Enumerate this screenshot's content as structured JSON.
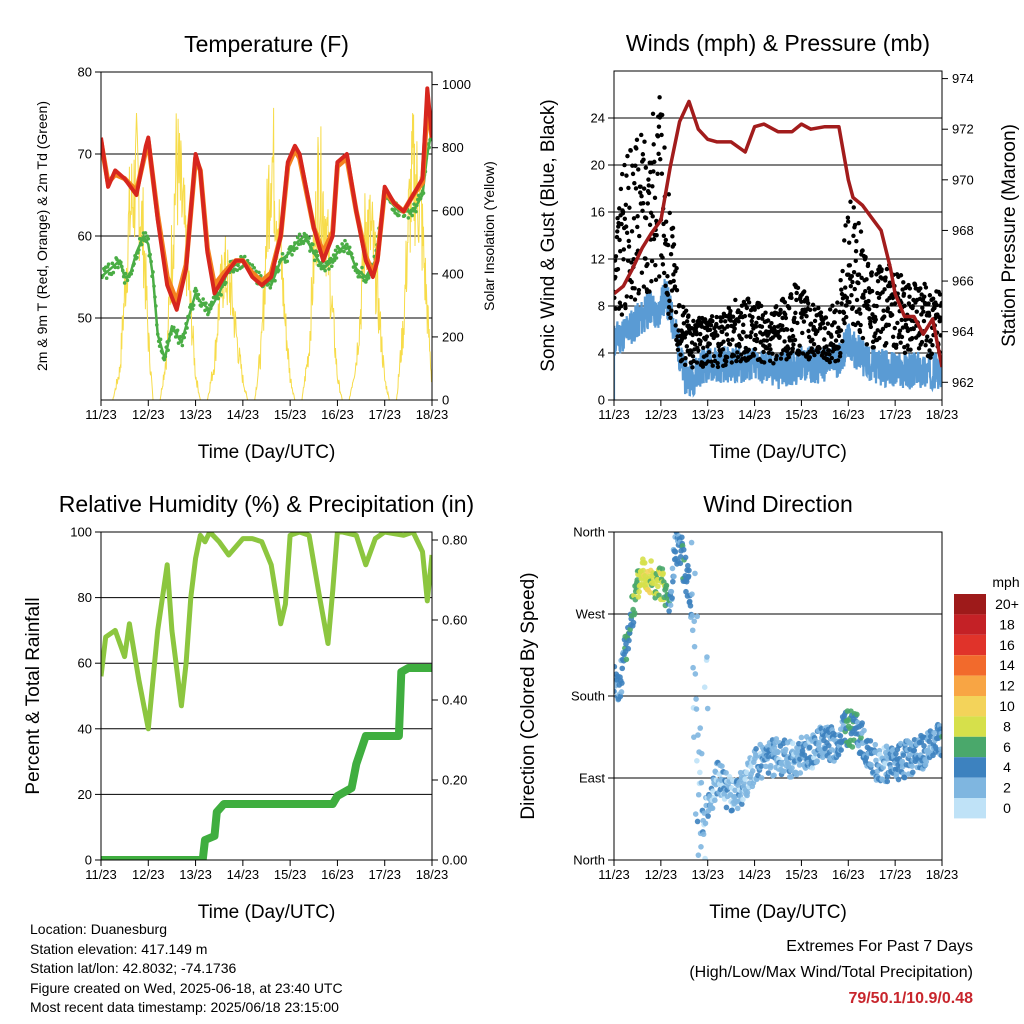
{
  "colors": {
    "temp2m": "#d7261e",
    "temp9m": "#f4821f",
    "dewpoint": "#4aad45",
    "solar": "#f7dc4a",
    "wind": "#5a9bd4",
    "gust": "#000000",
    "pressure": "#a21c1c",
    "rh": "#8cc63f",
    "precip": "#3fae3f"
  },
  "panels": {
    "temperature": {
      "title": "Temperature (F)",
      "ylabel_left": "2m & 9m T (Red, Orange) & 2m Td (Green)",
      "ylabel_right": "Solar Insolation (Yellow)",
      "xlabel": "Time (Day/UTC)"
    },
    "winds": {
      "title": "Winds (mph) & Pressure (mb)",
      "ylabel_left": "Sonic Wind & Gust (Blue, Black)",
      "ylabel_right": "Station Pressure (Maroon)",
      "xlabel": "Time (Day/UTC)"
    },
    "humidity": {
      "title": "Relative Humidity (%) & Precipitation (in)",
      "ylabel_left": "Percent & Total Rainfall",
      "xlabel": "Time (Day/UTC)"
    },
    "direction": {
      "title": "Wind Direction",
      "ylabel_left": "Direction (Colored By Speed)",
      "xlabel": "Time (Day/UTC)",
      "legend_title": "mph"
    }
  },
  "info": {
    "location": "Location: Duanesburg",
    "elevation": "Station elevation: 417.149 m",
    "latlon": "Station lat/lon: 42.8032; -74.1736",
    "created": "Figure created on Wed, 2025-06-18, at 23:40 UTC",
    "recent": "Most recent data timestamp: 2025/06/18 23:15:00"
  },
  "extremes": {
    "title": "Extremes For Past 7 Days",
    "subtitle": "(High/Low/Max Wind/Total Precipitation)",
    "values": "79/50.1/10.9/0.48"
  },
  "chart_data": [
    {
      "type": "line",
      "title": "Temperature (F)",
      "xlabel": "Time (Day/UTC)",
      "ylabel": "2m & 9m T (Red, Orange) & 2m Td (Green)",
      "ylabel_right": "Solar Insolation (Yellow)",
      "xlim": [
        11,
        18
      ],
      "ylim": [
        40,
        80
      ],
      "ylim_right": [
        0,
        1040
      ],
      "xticks": [
        "11/23",
        "12/23",
        "13/23",
        "14/23",
        "15/23",
        "16/23",
        "17/23",
        "18/23"
      ],
      "yticks": [
        "50",
        "60",
        "70",
        "80"
      ],
      "yticks_right": [
        "0",
        "200",
        "400",
        "600",
        "800",
        "1000"
      ],
      "series": [
        {
          "name": "2m T",
          "color": "#d7261e",
          "x": [
            11.0,
            11.15,
            11.3,
            11.5,
            11.75,
            11.95,
            12.0,
            12.2,
            12.4,
            12.6,
            12.8,
            13.0,
            13.1,
            13.25,
            13.4,
            13.6,
            13.85,
            14.0,
            14.2,
            14.4,
            14.6,
            14.8,
            14.95,
            15.1,
            15.2,
            15.5,
            15.7,
            15.9,
            16.0,
            16.2,
            16.4,
            16.6,
            16.75,
            16.85,
            17.0,
            17.2,
            17.4,
            17.6,
            17.8,
            17.9,
            18.0
          ],
          "y": [
            72,
            66,
            68,
            67,
            65,
            71,
            72,
            62,
            54,
            51,
            56,
            70,
            68,
            58,
            53,
            55,
            57,
            57,
            55,
            54,
            55,
            60,
            69,
            71,
            70,
            61,
            57,
            60,
            69,
            70,
            63,
            57,
            55,
            57,
            66,
            64,
            63,
            65,
            67,
            78,
            72
          ]
        },
        {
          "name": "9m T",
          "color": "#f4821f",
          "x": [
            11.0,
            11.15,
            11.3,
            11.5,
            11.75,
            11.95,
            12.0,
            12.2,
            12.4,
            12.6,
            12.8,
            13.0,
            13.1,
            13.25,
            13.4,
            13.6,
            13.85,
            14.0,
            14.2,
            14.4,
            14.6,
            14.8,
            14.95,
            15.1,
            15.2,
            15.5,
            15.7,
            15.9,
            16.0,
            16.2,
            16.4,
            16.6,
            16.75,
            16.85,
            17.0,
            17.2,
            17.4,
            17.6,
            17.8,
            17.9,
            18.0
          ],
          "y": [
            71.5,
            66.5,
            67.5,
            67,
            65.5,
            70.5,
            71.5,
            62.5,
            55,
            52,
            56.5,
            69.5,
            68,
            58.5,
            54,
            55.5,
            57,
            57,
            55.5,
            54.5,
            55.5,
            60,
            68.5,
            70.5,
            69.5,
            61,
            58,
            60.5,
            68.5,
            69.5,
            63,
            57.5,
            55.5,
            57.5,
            65.5,
            64,
            63,
            65,
            66.5,
            76,
            72
          ]
        },
        {
          "name": "2m Td",
          "color": "#4aad45",
          "x": [
            11.0,
            11.2,
            11.4,
            11.5,
            11.6,
            11.75,
            11.9,
            12.0,
            12.1,
            12.2,
            12.35,
            12.5,
            12.7,
            12.9,
            13.0,
            13.1,
            13.3,
            13.5,
            13.7,
            14.0,
            14.3,
            14.6,
            14.8,
            15.0,
            15.1,
            15.3,
            15.5,
            15.7,
            15.9,
            16.0,
            16.2,
            16.4,
            16.6,
            16.8,
            17.0,
            17.3,
            17.6,
            17.8,
            17.9,
            18.0
          ],
          "y": [
            55,
            56,
            57,
            55,
            55,
            58,
            60,
            59,
            55,
            48,
            45,
            49,
            47,
            51,
            53,
            52,
            51,
            53,
            56,
            57,
            55,
            54,
            57,
            58,
            59,
            60,
            58,
            56,
            57,
            58,
            59,
            56,
            55,
            57,
            65,
            63,
            63,
            65,
            70,
            73
          ]
        },
        {
          "name": "Solar Insolation",
          "color": "#f7dc4a",
          "axis": "right",
          "x": [
            11.0,
            11.1,
            11.25,
            11.4,
            11.5,
            11.6,
            11.75,
            11.9,
            12.0,
            12.1,
            12.25,
            12.4,
            12.5,
            12.6,
            12.75,
            12.9,
            13.0,
            13.1,
            13.25,
            13.4,
            13.5,
            13.6,
            13.75,
            13.9,
            14.0,
            14.1,
            14.25,
            14.4,
            14.5,
            14.6,
            14.75,
            14.9,
            15.0,
            15.1,
            15.25,
            15.4,
            15.5,
            15.6,
            15.75,
            15.9,
            16.0,
            16.1,
            16.25,
            16.4,
            16.5,
            16.6,
            16.75,
            16.9,
            17.0,
            17.1,
            17.25,
            17.4,
            17.5,
            17.6,
            17.75,
            17.9,
            18.0
          ],
          "y": [
            0,
            0,
            0,
            120,
            420,
            720,
            880,
            640,
            250,
            0,
            0,
            200,
            600,
            940,
            700,
            350,
            100,
            0,
            0,
            150,
            380,
            520,
            430,
            200,
            80,
            0,
            0,
            220,
            650,
            1000,
            720,
            300,
            90,
            0,
            0,
            200,
            550,
            880,
            720,
            330,
            90,
            0,
            0,
            160,
            380,
            720,
            620,
            300,
            80,
            0,
            0,
            300,
            700,
            900,
            780,
            350,
            60
          ]
        }
      ]
    },
    {
      "type": "line",
      "title": "Winds (mph) & Pressure (mb)",
      "xlabel": "Time (Day/UTC)",
      "ylabel": "Sonic Wind & Gust (Blue, Black)",
      "ylabel_right": "Station Pressure (Maroon)",
      "xlim": [
        11,
        18
      ],
      "ylim": [
        0,
        28
      ],
      "ylim_right": [
        961.3,
        974.3
      ],
      "xticks": [
        "11/23",
        "12/23",
        "13/23",
        "14/23",
        "15/23",
        "16/23",
        "17/23",
        "18/23"
      ],
      "yticks": [
        "0",
        "4",
        "8",
        "12",
        "16",
        "20",
        "24"
      ],
      "yticks_right": [
        "962",
        "964",
        "966",
        "968",
        "970",
        "972",
        "974"
      ],
      "series": [
        {
          "name": "Sonic Wind",
          "color": "#5a9bd4",
          "x": [
            11.0,
            11.3,
            11.6,
            11.8,
            11.9,
            12.1,
            12.3,
            12.5,
            12.7,
            12.9,
            13.1,
            13.5,
            14.0,
            14.5,
            15.0,
            15.5,
            15.8,
            16.0,
            16.2,
            16.5,
            17.0,
            17.5,
            18.0
          ],
          "y": [
            5,
            6,
            7,
            8,
            7,
            9,
            6,
            2,
            2,
            3,
            3,
            3,
            3,
            2.5,
            3,
            3,
            3.5,
            5,
            4,
            3,
            2.5,
            2.5,
            2.5
          ]
        },
        {
          "name": "Gust",
          "color": "#000000",
          "mode": "markers",
          "x": [
            11.0,
            11.2,
            11.4,
            11.6,
            11.8,
            12.0,
            12.2,
            12.4,
            12.6,
            12.8,
            13.0,
            13.3,
            13.6,
            14.0,
            14.3,
            14.6,
            14.9,
            15.2,
            15.5,
            15.8,
            16.0,
            16.2,
            16.4,
            16.6,
            16.8,
            17.0,
            17.2,
            17.4,
            17.6,
            17.8,
            18.0
          ],
          "y": [
            9,
            14,
            15,
            16,
            17,
            18,
            12,
            6,
            5,
            5,
            5,
            5,
            6,
            6,
            5,
            6,
            7,
            6,
            5,
            6,
            12,
            11,
            8,
            8,
            8,
            8,
            7,
            7,
            7,
            6,
            7
          ]
        },
        {
          "name": "Station Pressure",
          "color": "#a21c1c",
          "axis": "right",
          "x": [
            11.0,
            11.2,
            11.4,
            11.6,
            11.8,
            12.0,
            12.2,
            12.4,
            12.6,
            12.8,
            13.0,
            13.2,
            13.5,
            13.8,
            14.0,
            14.2,
            14.5,
            14.8,
            15.0,
            15.2,
            15.5,
            15.8,
            16.0,
            16.1,
            16.3,
            16.5,
            16.7,
            16.9,
            17.0,
            17.2,
            17.4,
            17.6,
            17.8,
            18.0
          ],
          "y": [
            965.5,
            965.8,
            966.5,
            967.3,
            967.9,
            968.4,
            970.5,
            972.3,
            973.1,
            972.0,
            971.6,
            971.5,
            971.5,
            971.1,
            972.1,
            972.2,
            971.9,
            971.9,
            972.2,
            972.0,
            972.1,
            972.1,
            970.0,
            969.3,
            969.0,
            968.5,
            968.0,
            966.5,
            965.5,
            964.6,
            964.6,
            963.9,
            964.5,
            962.6
          ]
        }
      ]
    },
    {
      "type": "line",
      "title": "Relative Humidity (%) & Precipitation (in)",
      "xlabel": "Time (Day/UTC)",
      "ylabel": "Percent & Total Rainfall",
      "xlim": [
        11,
        18
      ],
      "ylim": [
        0,
        100
      ],
      "ylim_right": [
        0,
        0.82
      ],
      "xticks": [
        "11/23",
        "12/23",
        "13/23",
        "14/23",
        "15/23",
        "16/23",
        "17/23",
        "18/23"
      ],
      "yticks": [
        "0",
        "20",
        "40",
        "60",
        "80",
        "100"
      ],
      "yticks_right": [
        "0.00",
        "0.20",
        "0.40",
        "0.60",
        "0.80"
      ],
      "series": [
        {
          "name": "Relative Humidity",
          "color": "#8cc63f",
          "x": [
            11.0,
            11.1,
            11.3,
            11.5,
            11.6,
            11.8,
            12.0,
            12.1,
            12.2,
            12.4,
            12.5,
            12.7,
            12.8,
            12.9,
            13.0,
            13.1,
            13.2,
            13.3,
            13.5,
            13.7,
            14.0,
            14.2,
            14.4,
            14.6,
            14.8,
            14.9,
            15.0,
            15.2,
            15.4,
            15.6,
            15.8,
            15.9,
            16.0,
            16.1,
            16.4,
            16.6,
            16.8,
            17.0,
            17.4,
            17.6,
            17.8,
            17.9,
            18.0
          ],
          "y": [
            56,
            68,
            70,
            62,
            72,
            55,
            40,
            55,
            70,
            90,
            70,
            47,
            60,
            80,
            92,
            99,
            97,
            100,
            97,
            93,
            98,
            98,
            97,
            90,
            72,
            78,
            99,
            100,
            99,
            82,
            66,
            82,
            100,
            100,
            99,
            90,
            98,
            100,
            99,
            100,
            94,
            79,
            93
          ]
        },
        {
          "name": "Total Precipitation",
          "color": "#3fae3f",
          "axis": "right",
          "x": [
            11.0,
            13.15,
            13.2,
            13.4,
            13.45,
            13.6,
            15.0,
            15.9,
            16.0,
            16.3,
            16.4,
            16.6,
            17.3,
            17.35,
            17.5,
            18.0
          ],
          "y": [
            0.0,
            0.0,
            0.05,
            0.06,
            0.12,
            0.14,
            0.14,
            0.14,
            0.16,
            0.18,
            0.24,
            0.31,
            0.31,
            0.47,
            0.48,
            0.48
          ]
        }
      ]
    },
    {
      "type": "scatter",
      "title": "Wind Direction",
      "xlabel": "Time (Day/UTC)",
      "ylabel": "Direction (Colored By Speed)",
      "xlim": [
        11,
        18
      ],
      "ylim": [
        0,
        360
      ],
      "xticks": [
        "11/23",
        "12/23",
        "13/23",
        "14/23",
        "15/23",
        "16/23",
        "17/23",
        "18/23"
      ],
      "yticks": [
        "North",
        "East",
        "South",
        "West",
        "North"
      ],
      "colorbar": {
        "title": "mph",
        "labels": [
          "20+",
          "18",
          "16",
          "14",
          "12",
          "10",
          "8",
          "6",
          "4",
          "2",
          "0"
        ],
        "colors": [
          "#9e1a1a",
          "#c42126",
          "#e0332a",
          "#f26a2c",
          "#f8a544",
          "#f3d35a",
          "#d6e04b",
          "#4aa86b",
          "#3d82bf",
          "#7fb6e0",
          "#bfe2f7"
        ]
      },
      "series": [
        {
          "name": "Direction",
          "x": [
            11.0,
            11.1,
            11.2,
            11.35,
            11.5,
            11.6,
            11.7,
            11.8,
            11.9,
            12.0,
            12.2,
            12.3,
            12.4,
            12.5,
            12.6,
            12.7,
            12.8,
            12.9,
            13.2,
            13.5,
            13.8,
            14.0,
            14.3,
            14.5,
            14.8,
            15.0,
            15.2,
            15.5,
            15.7,
            15.9,
            16.0,
            16.2,
            16.5,
            16.7,
            17.0,
            17.2,
            17.4,
            17.6,
            17.8,
            17.9,
            18.0
          ],
          "y": [
            200,
            180,
            220,
            260,
            300,
            320,
            315,
            310,
            300,
            305,
            280,
            340,
            350,
            320,
            300,
            260,
            120,
            40,
            90,
            70,
            80,
            105,
            110,
            115,
            110,
            115,
            120,
            130,
            125,
            140,
            145,
            140,
            110,
            105,
            105,
            110,
            115,
            120,
            125,
            140,
            120
          ],
          "speed": [
            3,
            2,
            4,
            5,
            7,
            8,
            9,
            8,
            7,
            8,
            4,
            3,
            4,
            5,
            4,
            2,
            2,
            2,
            2,
            2,
            2,
            2,
            3,
            2,
            2,
            3,
            2,
            3,
            3,
            4,
            6,
            4,
            3,
            2,
            3,
            3,
            3,
            3,
            2,
            3,
            4
          ]
        }
      ]
    }
  ]
}
